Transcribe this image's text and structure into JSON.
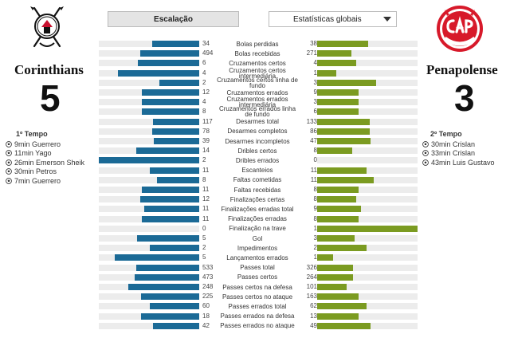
{
  "home": {
    "name": "Corinthians",
    "score": "5",
    "period": "1º Tempo",
    "goals": [
      "9min Guerrero",
      "11min Yago",
      "26min Emerson Sheik",
      "30min Petros",
      "7min Guerrero"
    ]
  },
  "away": {
    "name": "Penapolense",
    "score": "3",
    "period": "2º Tempo",
    "goals": [
      "30min Crislan",
      "33min Crislan",
      "43min Luis Gustavo"
    ]
  },
  "controls": {
    "lineup_button": "Escalação",
    "stats_select": "Estatísticas globais"
  },
  "colors": {
    "home_bar": "#1b6a96",
    "away_bar": "#7b9b21",
    "track": "#ececec"
  },
  "stats": [
    {
      "label": "Bolas perdidas",
      "home": "34",
      "away": "38",
      "home_frac": 0.47,
      "away_frac": 0.51
    },
    {
      "label": "Bolas recebidas",
      "home": "494",
      "away": "271",
      "home_frac": 0.59,
      "away_frac": 0.34
    },
    {
      "label": "Cruzamentos certos",
      "home": "6",
      "away": "4",
      "home_frac": 0.61,
      "away_frac": 0.39
    },
    {
      "label": "Cruzamentos certos intermediária",
      "home": "4",
      "away": "1",
      "home_frac": 0.81,
      "away_frac": 0.19
    },
    {
      "label": "Cruzamentos certos linha de fundo",
      "home": "2",
      "away": "3",
      "home_frac": 0.4,
      "away_frac": 0.59
    },
    {
      "label": "Cruzamentos errados",
      "home": "12",
      "away": "9",
      "home_frac": 0.57,
      "away_frac": 0.41
    },
    {
      "label": "Cruzamentos errados intermediária",
      "home": "4",
      "away": "3",
      "home_frac": 0.57,
      "away_frac": 0.41
    },
    {
      "label": "Cruzamentos errados linha de fundo",
      "home": "8",
      "away": "6",
      "home_frac": 0.57,
      "away_frac": 0.41
    },
    {
      "label": "Desarmes total",
      "home": "117",
      "away": "133",
      "home_frac": 0.46,
      "away_frac": 0.52
    },
    {
      "label": "Desarmes completos",
      "home": "78",
      "away": "86",
      "home_frac": 0.47,
      "away_frac": 0.52
    },
    {
      "label": "Desarmes incompletos",
      "home": "39",
      "away": "47",
      "home_frac": 0.45,
      "away_frac": 0.53
    },
    {
      "label": "Dribles certos",
      "home": "14",
      "away": "8",
      "home_frac": 0.63,
      "away_frac": 0.35
    },
    {
      "label": "Dribles errados",
      "home": "2",
      "away": "0",
      "home_frac": 1.0,
      "away_frac": 0.0
    },
    {
      "label": "Escanteios",
      "home": "11",
      "away": "11",
      "home_frac": 0.49,
      "away_frac": 0.49
    },
    {
      "label": "Faltas cometidas",
      "home": "8",
      "away": "11",
      "home_frac": 0.42,
      "away_frac": 0.56
    },
    {
      "label": "Faltas recebidas",
      "home": "11",
      "away": "8",
      "home_frac": 0.57,
      "away_frac": 0.41
    },
    {
      "label": "Finalizações certas",
      "home": "12",
      "away": "8",
      "home_frac": 0.59,
      "away_frac": 0.39
    },
    {
      "label": "Finalizações erradas total",
      "home": "11",
      "away": "9",
      "home_frac": 0.55,
      "away_frac": 0.44
    },
    {
      "label": "Finalizações erradas",
      "home": "11",
      "away": "8",
      "home_frac": 0.57,
      "away_frac": 0.41
    },
    {
      "label": "Finalização na trave",
      "home": "0",
      "away": "1",
      "home_frac": 0.0,
      "away_frac": 1.0
    },
    {
      "label": "Gol",
      "home": "5",
      "away": "3",
      "home_frac": 0.62,
      "away_frac": 0.37
    },
    {
      "label": "Impedimentos",
      "home": "2",
      "away": "2",
      "home_frac": 0.49,
      "away_frac": 0.49
    },
    {
      "label": "Lançamentos errados",
      "home": "5",
      "away": "1",
      "home_frac": 0.84,
      "away_frac": 0.16
    },
    {
      "label": "Passes total",
      "home": "533",
      "away": "326",
      "home_frac": 0.63,
      "away_frac": 0.36
    },
    {
      "label": "Passes certos",
      "home": "473",
      "away": "264",
      "home_frac": 0.64,
      "away_frac": 0.36
    },
    {
      "label": "Passes certos na defesa",
      "home": "248",
      "away": "101",
      "home_frac": 0.71,
      "away_frac": 0.29
    },
    {
      "label": "Passes certos no ataque",
      "home": "225",
      "away": "163",
      "home_frac": 0.58,
      "away_frac": 0.41
    },
    {
      "label": "Passes errados total",
      "home": "60",
      "away": "62",
      "home_frac": 0.49,
      "away_frac": 0.49
    },
    {
      "label": "Passes errados na defesa",
      "home": "18",
      "away": "13",
      "home_frac": 0.58,
      "away_frac": 0.41
    },
    {
      "label": "Passes errados no ataque",
      "home": "42",
      "away": "49",
      "home_frac": 0.46,
      "away_frac": 0.53
    }
  ]
}
